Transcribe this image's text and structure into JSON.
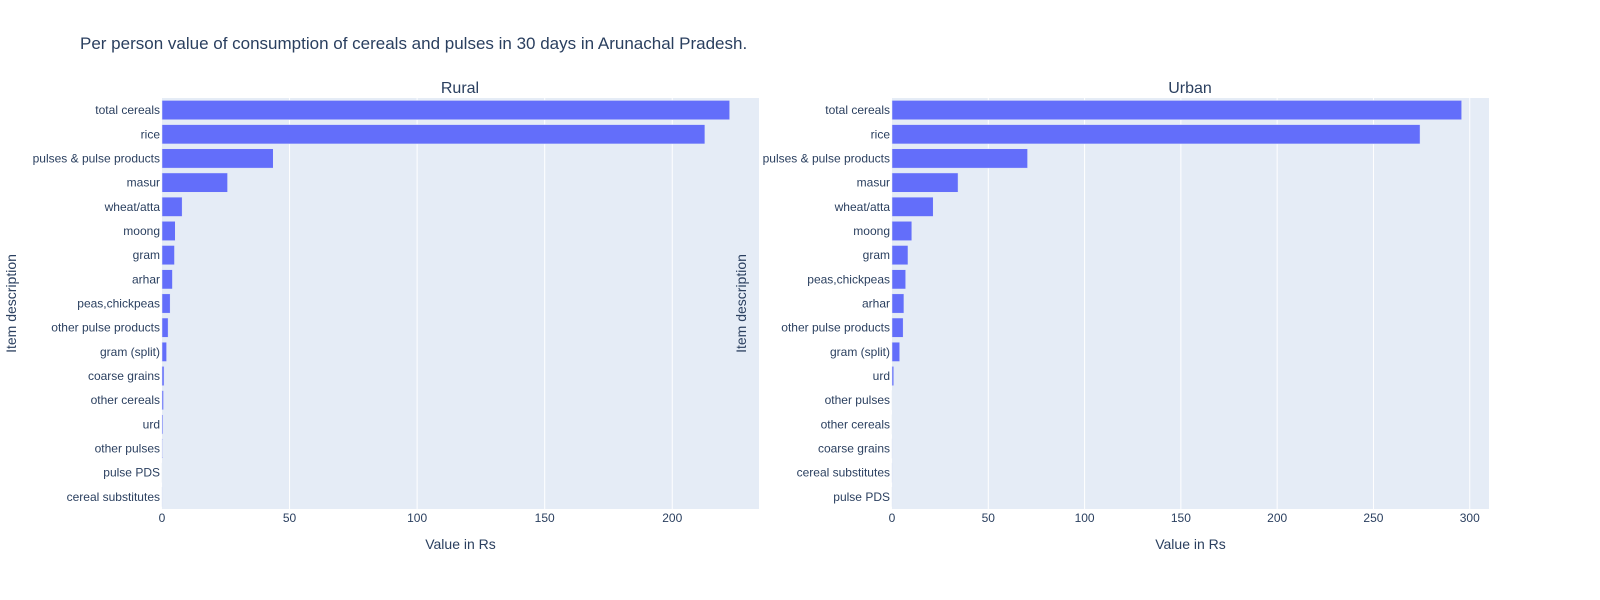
{
  "title": "Per person value of consumption of cereals and pulses in 30 days in Arunachal Pradesh.",
  "colors": {
    "bar": "#636efa",
    "plot_bg": "#e5ecf6",
    "grid": "#ffffff",
    "text": "#2a3f5f"
  },
  "chart_data": [
    {
      "type": "bar",
      "orientation": "horizontal",
      "subplot_title": "Rural",
      "xlabel": "Value in Rs",
      "ylabel": "Item description",
      "xlim": [
        0,
        234
      ],
      "xticks": [
        0,
        50,
        100,
        150,
        200
      ],
      "grid": true,
      "categories": [
        "total cereals",
        "rice",
        "pulses & pulse products",
        "masur",
        "wheat/atta",
        "moong",
        "gram",
        "arhar",
        "peas,chickpeas",
        "other pulse products",
        "gram (split)",
        "coarse grains",
        "other cereals",
        "urd",
        "other pulses",
        "pulse PDS",
        "cereal substitutes"
      ],
      "values": [
        222.5,
        212.8,
        43.6,
        25.7,
        7.9,
        5.2,
        4.9,
        4.1,
        3.2,
        2.4,
        1.8,
        0.8,
        0.6,
        0.4,
        0.2,
        0.1,
        0.05
      ]
    },
    {
      "type": "bar",
      "orientation": "horizontal",
      "subplot_title": "Urban",
      "xlabel": "Value in Rs",
      "ylabel": "Item description",
      "xlim": [
        0,
        310
      ],
      "xticks": [
        0,
        50,
        100,
        150,
        200,
        250,
        300
      ],
      "grid": true,
      "categories": [
        "total cereals",
        "rice",
        "pulses & pulse products",
        "masur",
        "wheat/atta",
        "moong",
        "gram",
        "peas,chickpeas",
        "arhar",
        "other pulse products",
        "gram (split)",
        "urd",
        "other pulses",
        "other cereals",
        "coarse grains",
        "cereal substitutes",
        "pulse PDS"
      ],
      "values": [
        295.8,
        274.2,
        70.4,
        34.3,
        21.4,
        10.3,
        8.3,
        7.1,
        6.2,
        5.8,
        4.0,
        0.9,
        0.2,
        0.15,
        0.1,
        0.05,
        0.02
      ]
    }
  ]
}
